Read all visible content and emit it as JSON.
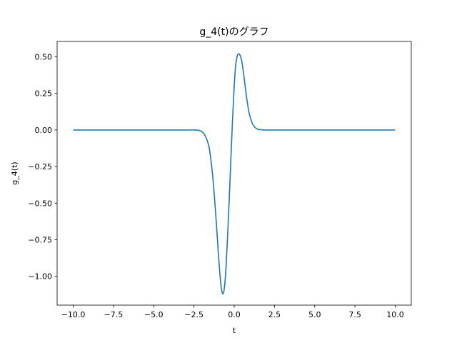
{
  "chart_data": {
    "type": "line",
    "title": "g_4(t)のグラフ",
    "xlabel": "t",
    "ylabel": "g_4(t)",
    "xlim": [
      -11.0,
      11.0
    ],
    "ylim": [
      -1.197,
      0.605
    ],
    "xticks": [
      -10.0,
      -7.5,
      -5.0,
      -2.5,
      0.0,
      2.5,
      5.0,
      7.5,
      10.0
    ],
    "xtick_labels": [
      "−10.0",
      "−7.5",
      "−5.0",
      "−2.5",
      "0.0",
      "2.5",
      "5.0",
      "7.5",
      "10.0"
    ],
    "yticks": [
      0.5,
      0.25,
      0.0,
      -0.25,
      -0.5,
      -0.75,
      -1.0
    ],
    "ytick_labels": [
      "0.50",
      "0.25",
      "0.00",
      "−0.25",
      "−0.50",
      "−0.75",
      "−1.00"
    ],
    "grid": false,
    "series": [
      {
        "color": "#1f77b4",
        "x": [
          -10.0,
          -5.0,
          -3.0,
          -2.5,
          -2.2,
          -2.0,
          -1.8,
          -1.6,
          -1.5,
          -1.4,
          -1.3,
          -1.2,
          -1.1,
          -1.0,
          -0.9,
          -0.8,
          -0.7,
          -0.6,
          -0.5,
          -0.4,
          -0.3,
          -0.2,
          -0.1,
          0.0,
          0.1,
          0.2,
          0.3,
          0.4,
          0.5,
          0.6,
          0.7,
          0.8,
          0.9,
          1.0,
          1.1,
          1.2,
          1.3,
          1.4,
          1.5,
          1.6,
          1.8,
          2.0,
          2.5,
          3.0,
          5.0,
          10.0
        ],
        "y": [
          0.0,
          0.0,
          0.0,
          0.0,
          -0.002,
          -0.012,
          -0.04,
          -0.1,
          -0.16,
          -0.25,
          -0.36,
          -0.5,
          -0.65,
          -0.82,
          -0.97,
          -1.08,
          -1.12,
          -1.07,
          -0.92,
          -0.7,
          -0.45,
          -0.18,
          0.08,
          0.3,
          0.45,
          0.51,
          0.52,
          0.5,
          0.45,
          0.37,
          0.28,
          0.2,
          0.13,
          0.085,
          0.052,
          0.03,
          0.017,
          0.009,
          0.004,
          0.002,
          0.0,
          0.0,
          0.0,
          0.0,
          0.0,
          0.0
        ]
      }
    ]
  }
}
